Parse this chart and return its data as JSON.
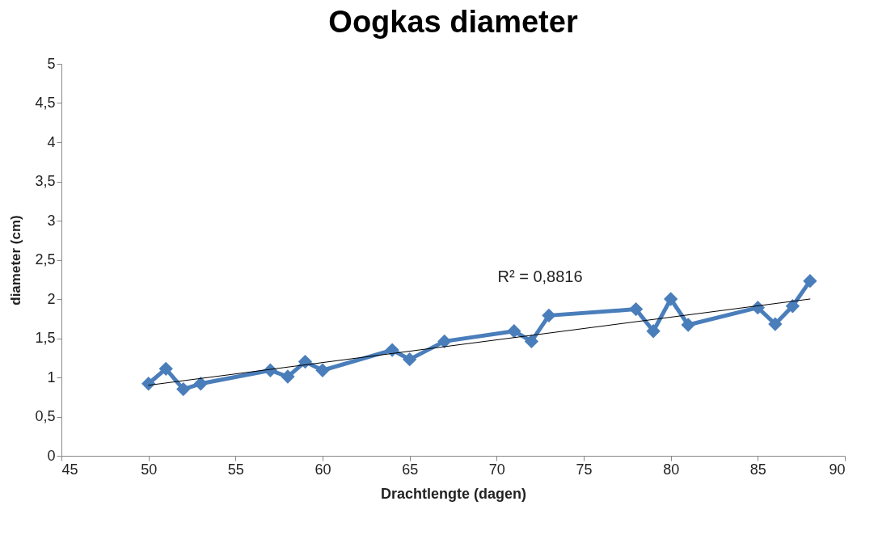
{
  "chart_data": {
    "type": "line",
    "title": "Oogkas diameter",
    "xlabel": "Drachtlengte (dagen)",
    "ylabel": "diameter (cm)",
    "series": [
      {
        "color": "#4a7ebb",
        "marker": "diamond",
        "x": [
          50,
          51,
          52,
          53,
          57,
          58,
          59,
          60,
          64,
          65,
          67,
          71,
          72,
          73,
          78,
          79,
          80,
          81,
          85,
          86,
          87,
          88
        ],
        "values": [
          0.92,
          1.11,
          0.85,
          0.92,
          1.09,
          1.01,
          1.2,
          1.09,
          1.35,
          1.23,
          1.46,
          1.59,
          1.46,
          1.79,
          1.87,
          1.59,
          2.0,
          1.67,
          1.89,
          1.68,
          1.91,
          2.23
        ]
      },
      {
        "color": "#000000",
        "marker": "none",
        "x": [
          50,
          88
        ],
        "values": [
          0.9,
          2.0
        ]
      }
    ],
    "xlim": [
      45,
      90
    ],
    "xticks": [
      45,
      50,
      55,
      60,
      65,
      70,
      75,
      80,
      85,
      90
    ],
    "ylim": [
      0,
      5
    ],
    "yticks": [
      0,
      {
        "value": 0.5,
        "label": "0,5"
      },
      1,
      {
        "value": 1.5,
        "label": "1,5"
      },
      2,
      {
        "value": 2.5,
        "label": "2,5"
      },
      3,
      {
        "value": 3.5,
        "label": "3,5"
      },
      4,
      {
        "value": 4.5,
        "label": "4,5"
      },
      5
    ],
    "annotations": [
      "R² = 0,8816"
    ],
    "grid": false
  }
}
